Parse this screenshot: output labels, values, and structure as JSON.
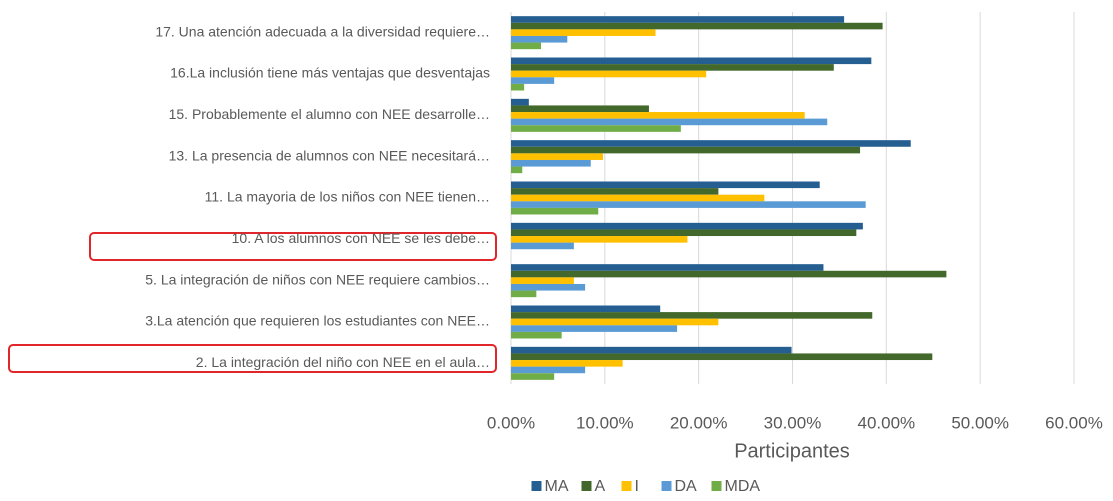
{
  "chart_data": {
    "type": "barh",
    "xlabel": "Participantes",
    "categories": [
      "17. Una atención adecuada a la diversidad requiere…",
      "16.La inclusión tiene más ventajas que desventajas",
      "15. Probablemente el alumno con NEE desarrolle…",
      "13. La presencia de alumnos con NEE necesitará…",
      "11. La mayoria de los niños con NEE tienen…",
      "10. A los alumnos con NEE se les debe…",
      "5. La integración de niños con NEE requiere cambios…",
      "3.La atención que requieren los estudiantes con NEE…",
      "2. La integración del niño con NEE en el aula…"
    ],
    "series": [
      {
        "name": "MA",
        "color": "#255e91",
        "values": [
          35.5,
          38.4,
          1.9,
          42.6,
          32.9,
          37.5,
          33.3,
          15.9,
          29.9
        ]
      },
      {
        "name": "A",
        "color": "#43682b",
        "values": [
          39.6,
          34.4,
          14.7,
          37.2,
          22.1,
          36.8,
          46.4,
          38.5,
          44.9
        ]
      },
      {
        "name": "I",
        "color": "#ffc000",
        "values": [
          15.4,
          20.8,
          31.3,
          9.8,
          27.0,
          18.8,
          6.7,
          22.1,
          11.9
        ]
      },
      {
        "name": "DA",
        "color": "#5b9bd5",
        "values": [
          6.0,
          4.6,
          33.7,
          8.5,
          37.8,
          6.7,
          7.9,
          17.7,
          7.9
        ]
      },
      {
        "name": "MDA",
        "color": "#70ad47",
        "values": [
          3.2,
          1.4,
          18.1,
          1.2,
          9.3,
          0,
          2.7,
          5.4,
          4.6
        ]
      }
    ],
    "xlim": [
      0,
      60
    ],
    "xticks": [
      {
        "value": 0,
        "label": "0.00%"
      },
      {
        "value": 10,
        "label": "10.00%"
      },
      {
        "value": 20,
        "label": "20.00%"
      },
      {
        "value": 30,
        "label": "30.00%"
      },
      {
        "value": 40,
        "label": "40.00%"
      },
      {
        "value": 50,
        "label": "50.00%"
      },
      {
        "value": 60,
        "label": "60.00%"
      }
    ],
    "grid": true,
    "legend": "bottom"
  }
}
